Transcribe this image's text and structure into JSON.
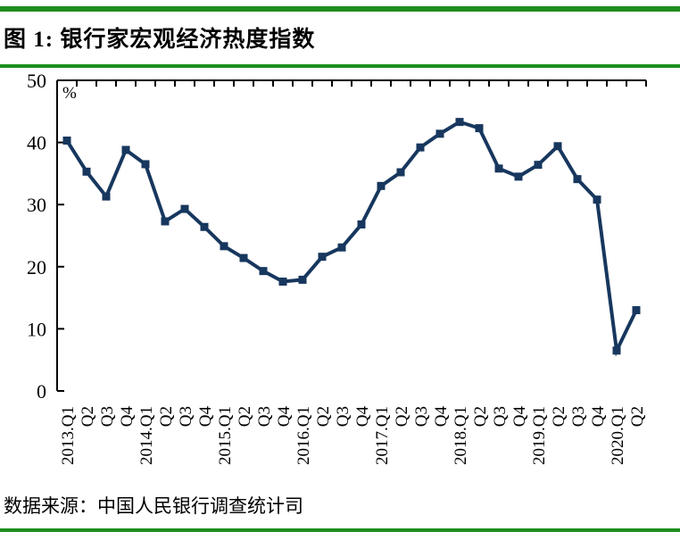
{
  "figure": {
    "title": "图 1: 银行家宏观经济热度指数",
    "source": "数据来源：中国人民银行调查统计司",
    "divider_color": "#1E8E1E"
  },
  "chart_data": {
    "type": "line",
    "title": "图 1: 银行家宏观经济热度指数",
    "ylabel": "%",
    "categories": [
      "2013.Q1",
      "Q2",
      "Q3",
      "Q4",
      "2014.Q1",
      "Q2",
      "Q3",
      "Q4",
      "2015.Q1",
      "Q2",
      "Q3",
      "Q4",
      "2016.Q1",
      "Q2",
      "Q3",
      "Q4",
      "2017.Q1",
      "Q2",
      "Q3",
      "Q4",
      "2018.Q1",
      "Q2",
      "Q3",
      "Q4",
      "2019.Q1",
      "Q2",
      "Q3",
      "Q4",
      "2020.Q1",
      "Q2"
    ],
    "values": [
      40.3,
      35.3,
      31.3,
      38.8,
      36.5,
      27.3,
      29.3,
      26.4,
      23.3,
      21.4,
      19.3,
      17.6,
      17.9,
      21.6,
      23.1,
      26.8,
      33.0,
      35.2,
      39.2,
      41.4,
      43.3,
      42.3,
      35.8,
      34.5,
      36.4,
      39.4,
      34.1,
      30.8,
      6.5,
      13.0
    ],
    "ylim": [
      0,
      50
    ],
    "yticks": [
      0,
      10,
      20,
      30,
      40,
      50
    ],
    "grid": false,
    "legend": "none",
    "marker": "square",
    "line_color": "#17375E",
    "source": "数据来源：中国人民银行调查统计司"
  }
}
